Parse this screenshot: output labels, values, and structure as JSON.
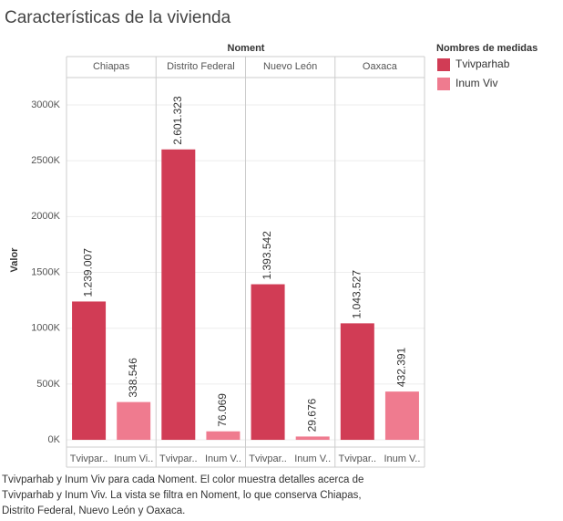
{
  "chart_data": {
    "type": "bar",
    "title": "Características de la vivienda",
    "column_header": "Noment",
    "panes": [
      "Chiapas",
      "Distrito Federal",
      "Nuevo León",
      "Oaxaca"
    ],
    "x_labels": [
      [
        "Tvivpar..",
        "Inum Vi.."
      ],
      [
        "Tvivpar..",
        "Inum V.."
      ],
      [
        "Tvivpar..",
        "Inum V.."
      ],
      [
        "Tvivpar..",
        "Inum V.."
      ]
    ],
    "series": [
      {
        "name": "Tvivparhab",
        "color": "#d13c55",
        "values": [
          1239007,
          2601323,
          1393542,
          1043527
        ],
        "value_labels": [
          "1.239.007",
          "2.601.323",
          "1.393.542",
          "1.043.527"
        ]
      },
      {
        "name": "Inum Viv",
        "color": "#ef7b8f",
        "values": [
          338546,
          76069,
          29676,
          432391
        ],
        "value_labels": [
          "338.546",
          "76.069",
          "29.676",
          "432.391"
        ]
      }
    ],
    "y_label": "Valor",
    "ylim": [
      -65000,
      3245000
    ],
    "yticks": [
      {
        "value": 0,
        "label": "0K"
      },
      {
        "value": 500000,
        "label": "500K"
      },
      {
        "value": 1000000,
        "label": "1000K"
      },
      {
        "value": 1500000,
        "label": "1500K"
      },
      {
        "value": 2000000,
        "label": "2000K"
      },
      {
        "value": 2500000,
        "label": "2500K"
      },
      {
        "value": 3000000,
        "label": "3000K"
      }
    ],
    "grid": true,
    "legend_title": "Nombres de medidas",
    "caption": [
      "Tvivparhab y Inum Viv para cada Noment.  El color muestra detalles acerca de",
      "Tvivparhab y Inum Viv. La vista se filtra en Noment, lo que conserva Chiapas,",
      "Distrito Federal, Nuevo León y Oaxaca."
    ]
  }
}
